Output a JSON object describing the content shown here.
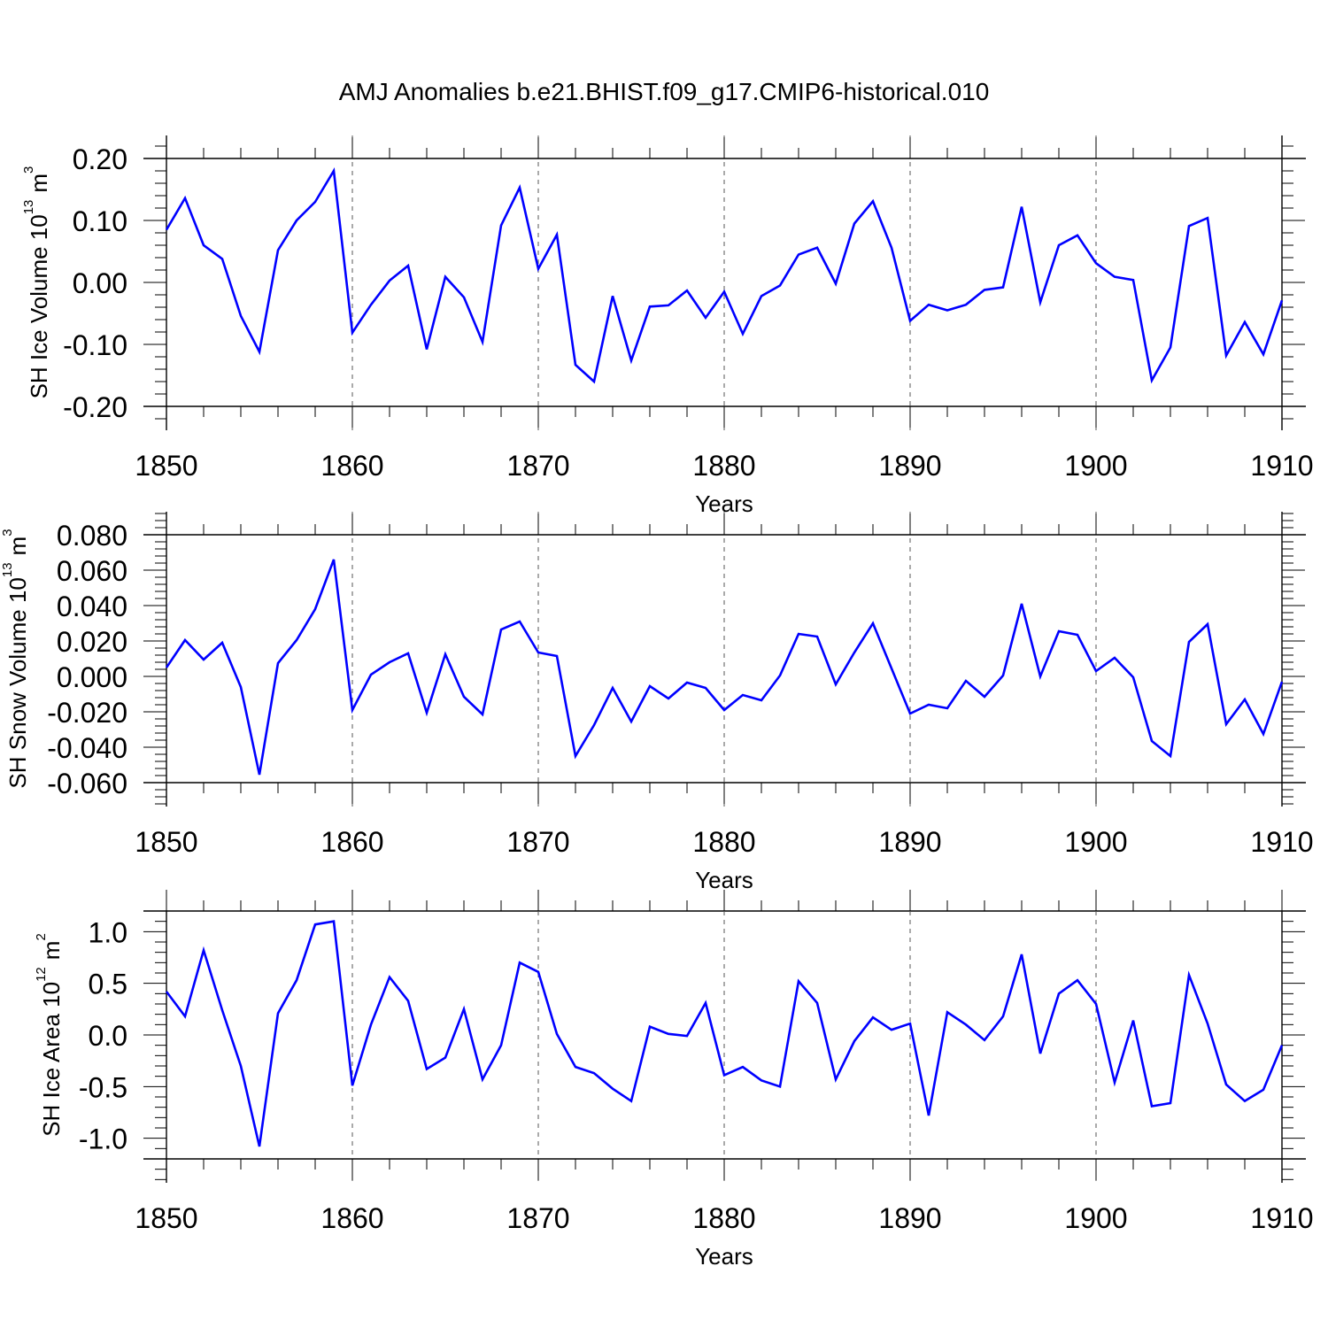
{
  "figure_title": "AMJ Anomalies b.e21.BHIST.f09_g17.CMIP6-historical.010",
  "colors": {
    "line": "#0000ff",
    "axis": "#000000",
    "grid": "#555555"
  },
  "chart_data": [
    {
      "type": "line",
      "name": "panel-ice-volume",
      "xlabel": "Years",
      "ylabel": "SH Ice Volume 10",
      "ylabel_sup": "13",
      "ylabel_unit": "m",
      "ylabel_unit_sup": "3",
      "xlim": [
        1850,
        1910
      ],
      "ylim": [
        -0.2,
        0.2
      ],
      "xticks": [
        1850,
        1860,
        1870,
        1880,
        1890,
        1900,
        1910
      ],
      "xtick_labels": [
        "1850",
        "1860",
        "1870",
        "1880",
        "1890",
        "1900",
        "1910"
      ],
      "yticks": [
        -0.2,
        -0.1,
        0.0,
        0.1,
        0.2
      ],
      "ytick_labels": [
        "-0.20",
        "-0.10",
        "0.00",
        "0.10",
        "0.20"
      ],
      "x_start": 1850,
      "values": [
        0.085,
        0.136,
        0.06,
        0.038,
        -0.054,
        -0.112,
        0.052,
        0.1,
        0.13,
        0.18,
        -0.081,
        -0.036,
        0.003,
        0.027,
        -0.108,
        0.009,
        -0.024,
        -0.096,
        0.092,
        0.153,
        0.022,
        0.077,
        -0.133,
        -0.16,
        -0.022,
        -0.126,
        -0.039,
        -0.037,
        -0.013,
        -0.057,
        -0.015,
        -0.083,
        -0.022,
        -0.005,
        0.045,
        0.056,
        -0.002,
        0.095,
        0.131,
        0.056,
        -0.062,
        -0.036,
        -0.045,
        -0.036,
        -0.012,
        -0.008,
        0.122,
        -0.032,
        0.06,
        0.076,
        0.031,
        0.009,
        0.004,
        -0.158,
        -0.105,
        0.091,
        0.104,
        -0.118,
        -0.064,
        -0.116,
        -0.029
      ]
    },
    {
      "type": "line",
      "name": "panel-snow-volume",
      "xlabel": "Years",
      "ylabel": "SH Snow Volume 10",
      "ylabel_sup": "13",
      "ylabel_unit": "m",
      "ylabel_unit_sup": "3",
      "xlim": [
        1850,
        1910
      ],
      "ylim": [
        -0.06,
        0.08
      ],
      "xticks": [
        1850,
        1860,
        1870,
        1880,
        1890,
        1900,
        1910
      ],
      "xtick_labels": [
        "1850",
        "1860",
        "1870",
        "1880",
        "1890",
        "1900",
        "1910"
      ],
      "yticks": [
        -0.06,
        -0.04,
        -0.02,
        0.0,
        0.02,
        0.04,
        0.06,
        0.08
      ],
      "ytick_labels": [
        "-0.060",
        "-0.040",
        "-0.020",
        "0.000",
        "0.020",
        "0.040",
        "0.060",
        "0.080"
      ],
      "x_start": 1850,
      "values": [
        0.005,
        0.0205,
        0.0095,
        0.019,
        -0.006,
        -0.0555,
        0.0075,
        0.0205,
        0.038,
        0.066,
        -0.019,
        0.001,
        0.008,
        0.013,
        -0.0205,
        0.0125,
        -0.0115,
        -0.0215,
        0.0265,
        0.031,
        0.0135,
        0.0115,
        -0.045,
        -0.0275,
        -0.0065,
        -0.0255,
        -0.0055,
        -0.0125,
        -0.0035,
        -0.0065,
        -0.019,
        -0.0105,
        -0.0135,
        0.0005,
        0.024,
        0.0225,
        -0.0045,
        0.0135,
        0.03,
        0.0045,
        -0.021,
        -0.016,
        -0.018,
        -0.0025,
        -0.0115,
        0.0005,
        0.041,
        0.0,
        0.0255,
        0.0235,
        0.003,
        0.0105,
        -0.0005,
        -0.0365,
        -0.045,
        0.0195,
        0.0295,
        -0.027,
        -0.013,
        -0.0325,
        -0.003
      ]
    },
    {
      "type": "line",
      "name": "panel-ice-area",
      "xlabel": "Years",
      "ylabel": "SH Ice Area 10",
      "ylabel_sup": "12",
      "ylabel_unit": "m",
      "ylabel_unit_sup": "2",
      "xlim": [
        1850,
        1910
      ],
      "ylim": [
        -1.2,
        1.2
      ],
      "xticks": [
        1850,
        1860,
        1870,
        1880,
        1890,
        1900,
        1910
      ],
      "xtick_labels": [
        "1850",
        "1860",
        "1870",
        "1880",
        "1890",
        "1900",
        "1910"
      ],
      "yticks": [
        -1.0,
        -0.5,
        0.0,
        0.5,
        1.0
      ],
      "ytick_labels": [
        "-1.0",
        "-0.5",
        "0.0",
        "0.5",
        "1.0"
      ],
      "x_start": 1850,
      "values": [
        0.42,
        0.18,
        0.82,
        0.24,
        -0.3,
        -1.08,
        0.21,
        0.53,
        1.07,
        1.1,
        -0.49,
        0.1,
        0.56,
        0.33,
        -0.33,
        -0.22,
        0.25,
        -0.43,
        -0.1,
        0.7,
        0.61,
        0.01,
        -0.31,
        -0.37,
        -0.52,
        -0.64,
        0.08,
        0.01,
        -0.01,
        0.31,
        -0.39,
        -0.31,
        -0.44,
        -0.5,
        0.52,
        0.31,
        -0.43,
        -0.06,
        0.17,
        0.05,
        0.11,
        -0.78,
        0.22,
        0.1,
        -0.05,
        0.18,
        0.78,
        -0.18,
        0.4,
        0.53,
        0.3,
        -0.46,
        0.14,
        -0.69,
        -0.66,
        0.58,
        0.11,
        -0.48,
        -0.64,
        -0.53,
        -0.1
      ]
    }
  ]
}
